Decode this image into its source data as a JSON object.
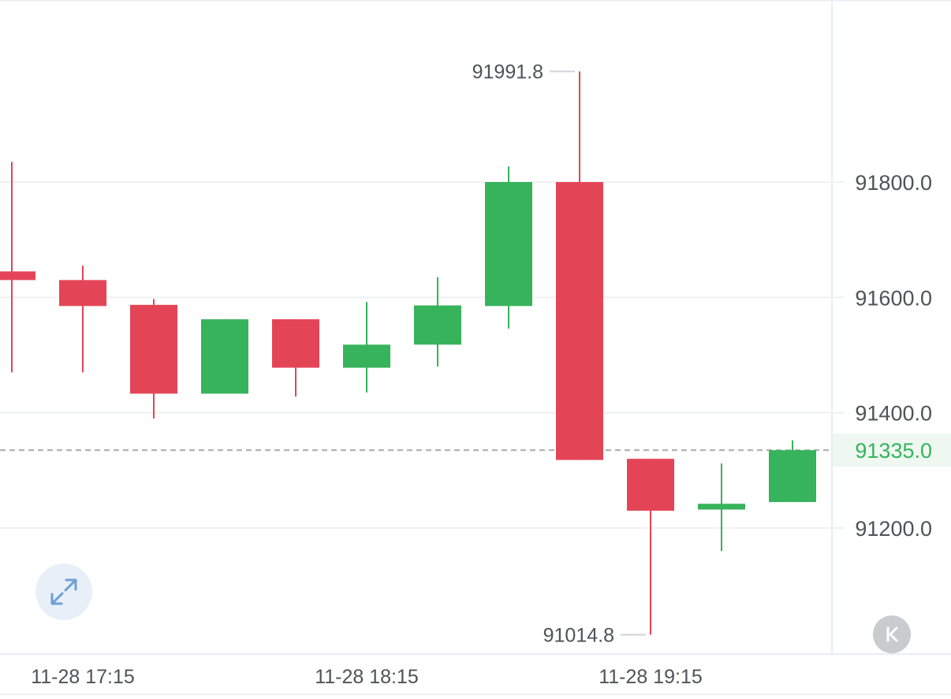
{
  "chart_data": {
    "type": "candlestick",
    "x_tick_labels": [
      "11-28 17:15",
      "11-28 18:15",
      "11-28 19:15"
    ],
    "y_tick_labels": [
      "91800.0",
      "91600.0",
      "91400.0",
      "91200.0"
    ],
    "y_ticks": [
      91800,
      91600,
      91400,
      91200
    ],
    "ylim": [
      91000,
      92100
    ],
    "grid": true,
    "current_price": {
      "value": 91335,
      "label": "91335.0"
    },
    "high_marker": {
      "value": 91991.8,
      "label": "91991.8"
    },
    "low_marker": {
      "value": 91014.8,
      "label": "91014.8"
    },
    "candles": [
      {
        "open": 91645,
        "close": 91630,
        "high": 91835,
        "low": 91470
      },
      {
        "open": 91630,
        "close": 91585,
        "high": 91655,
        "low": 91470
      },
      {
        "open": 91587,
        "close": 91433,
        "high": 91597,
        "low": 91390
      },
      {
        "open": 91433,
        "close": 91562,
        "high": 91562,
        "low": 91433
      },
      {
        "open": 91562,
        "close": 91478,
        "high": 91562,
        "low": 91428
      },
      {
        "open": 91478,
        "close": 91518,
        "high": 91592,
        "low": 91435
      },
      {
        "open": 91518,
        "close": 91586,
        "high": 91635,
        "low": 91480
      },
      {
        "open": 91585,
        "close": 91800,
        "high": 91827,
        "low": 91546
      },
      {
        "open": 91800,
        "close": 91318,
        "high": 91991.8,
        "low": 91318
      },
      {
        "open": 91320,
        "close": 91230,
        "high": 91320,
        "low": 91014.8
      },
      {
        "open": 91232,
        "close": 91242,
        "high": 91312,
        "low": 91160
      },
      {
        "open": 91245,
        "close": 91335,
        "high": 91352,
        "low": 91245
      }
    ]
  },
  "colors": {
    "up": "#36b35b",
    "down": "#e44556",
    "grid": "#eef1f4",
    "axis_text": "#4f5257",
    "price_bg": "#eef7f0"
  },
  "icons": {
    "expand": "expand-arrows-icon",
    "back": "back-to-latest-icon"
  }
}
